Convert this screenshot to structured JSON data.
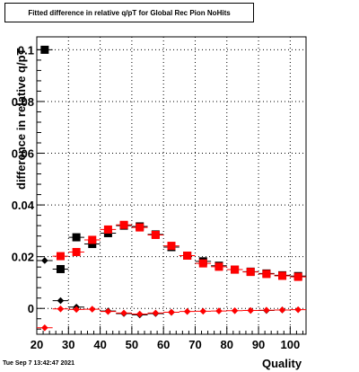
{
  "chart_data": {
    "type": "scatter",
    "title": "Fitted difference in relative q/pT for Global Rec Pion NoHits",
    "xlabel": "Quality",
    "ylabel": "difference in relative q/pT",
    "xlim": [
      20,
      105
    ],
    "ylim": [
      -0.01,
      0.105
    ],
    "x_ticks": [
      "20",
      "30",
      "40",
      "50",
      "60",
      "70",
      "80",
      "90",
      "100"
    ],
    "y_ticks": [
      "0",
      "0.02",
      "0.04",
      "0.06",
      "0.08",
      "0.1"
    ],
    "grid": true,
    "legend": "none",
    "series": [
      {
        "marker": "square",
        "color": "#000000",
        "x": [
          22.5,
          27.5,
          32.5,
          37.5,
          42.5,
          47.5,
          52.5,
          57.5,
          62.5,
          67.5,
          72.5,
          77.5,
          82.5,
          87.5,
          92.5,
          97.5,
          102.5
        ],
        "y": [
          0.1,
          0.0152,
          0.0275,
          0.0249,
          0.0291,
          0.032,
          0.0317,
          0.0286,
          0.0237,
          0.0204,
          0.0182,
          0.0165,
          0.015,
          0.0142,
          0.0135,
          0.0128,
          0.0125
        ]
      },
      {
        "marker": "square",
        "color": "#ff0000",
        "x": [
          27.5,
          32.5,
          37.5,
          42.5,
          47.5,
          52.5,
          57.5,
          62.5,
          67.5,
          72.5,
          77.5,
          82.5,
          87.5,
          92.5,
          97.5,
          102.5
        ],
        "y": [
          0.0202,
          0.0218,
          0.0265,
          0.0305,
          0.0323,
          0.0313,
          0.0284,
          0.0242,
          0.0204,
          0.0174,
          0.0161,
          0.015,
          0.0141,
          0.0133,
          0.0126,
          0.0122
        ]
      },
      {
        "marker": "diamond",
        "color": "#000000",
        "x": [
          22.5,
          27.5,
          32.5,
          42.5,
          47.5,
          52.5,
          57.5,
          62.5,
          92.5,
          97.5
        ],
        "y": [
          0.0185,
          0.003,
          0.0005,
          -0.001,
          -0.002,
          -0.0025,
          -0.002,
          -0.0015,
          -0.0008,
          -0.0006
        ]
      },
      {
        "marker": "diamond",
        "color": "#ff0000",
        "x": [
          22.5,
          27.5,
          32.5,
          37.5,
          42.5,
          47.5,
          52.5,
          57.5,
          62.5,
          67.5,
          72.5,
          77.5,
          82.5,
          87.5,
          92.5,
          97.5,
          102.5
        ],
        "y": [
          -0.0075,
          -0.0002,
          -0.0004,
          -0.0003,
          -0.0012,
          -0.0018,
          -0.0022,
          -0.0018,
          -0.0015,
          -0.0012,
          -0.0011,
          -0.001,
          -0.0009,
          -0.0008,
          -0.0007,
          -0.0006,
          -0.0005
        ]
      }
    ]
  },
  "footer": {
    "timestamp": "Tue Sep  7 13:42:47 2021"
  }
}
